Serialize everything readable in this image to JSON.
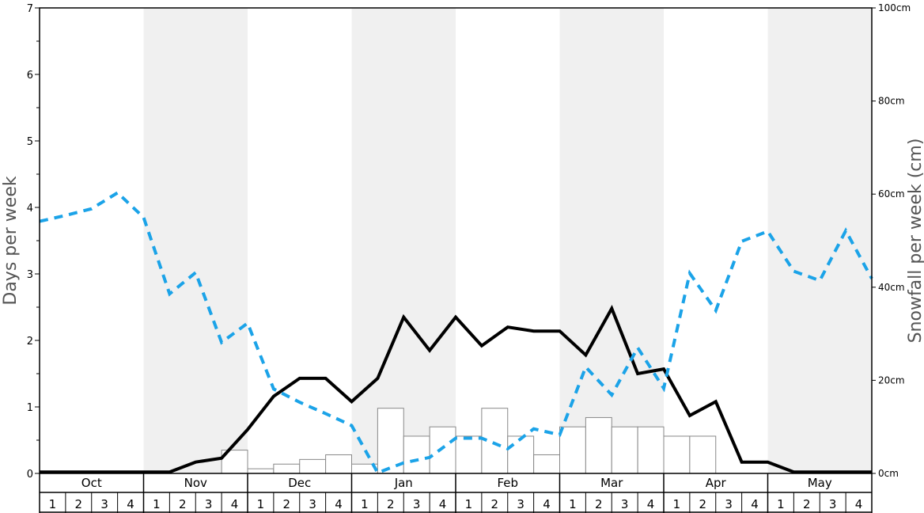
{
  "chart_data": {
    "type": "bar",
    "colors": {
      "line_days": "#000000",
      "line_dashed": "#1ba3e8",
      "bars_fill": "#ffffff",
      "bars_stroke": "#888888",
      "shade": "#f0f0f0"
    },
    "months": [
      "Oct",
      "Nov",
      "Dec",
      "Jan",
      "Feb",
      "Mar",
      "Apr",
      "May"
    ],
    "weeks": [
      "1",
      "2",
      "3",
      "4"
    ],
    "shaded_months": [
      "Nov",
      "Jan",
      "Mar",
      "May"
    ],
    "y_left": {
      "label": "Days per week",
      "range": [
        0,
        7
      ],
      "ticks": [
        "0",
        "1",
        "2",
        "3",
        "4",
        "5",
        "6",
        "7"
      ]
    },
    "y_right": {
      "label": "Snowfall per week (cm)",
      "range": [
        0,
        100
      ],
      "ticks": [
        "0cm",
        "20cm",
        "40cm",
        "60cm",
        "80cm",
        "100cm"
      ]
    },
    "series": [
      {
        "type": "line",
        "axis": "left",
        "style": "solid",
        "values": [
          0.02,
          0.02,
          0.02,
          0.02,
          0.02,
          0.02,
          0.17,
          0.23,
          0.66,
          1.16,
          1.43,
          1.43,
          1.08,
          1.43,
          2.35,
          1.85,
          2.35,
          1.92,
          2.2,
          2.14,
          2.14,
          1.78,
          2.48,
          1.5,
          1.57,
          0.87,
          1.08,
          0.17,
          0.17,
          0.02,
          0.02,
          0.02,
          0.02
        ]
      },
      {
        "type": "line",
        "axis": "left",
        "style": "dashed",
        "values": [
          3.79,
          3.88,
          3.98,
          4.22,
          3.85,
          2.7,
          3.02,
          1.97,
          2.26,
          1.27,
          1.07,
          0.9,
          0.72,
          0.01,
          0.16,
          0.24,
          0.53,
          0.53,
          0.37,
          0.67,
          0.58,
          1.6,
          1.18,
          1.89,
          1.28,
          3.01,
          2.45,
          3.49,
          3.64,
          3.04,
          2.9,
          3.65,
          2.93
        ]
      },
      {
        "type": "bar",
        "axis": "right",
        "values": [
          0,
          0,
          0,
          0,
          0,
          0,
          0,
          5,
          1,
          2,
          3,
          4,
          2,
          14,
          8,
          10,
          8,
          14,
          8,
          4,
          10,
          12,
          10,
          10,
          8,
          8,
          0,
          0,
          0,
          0,
          0,
          0
        ]
      }
    ]
  }
}
